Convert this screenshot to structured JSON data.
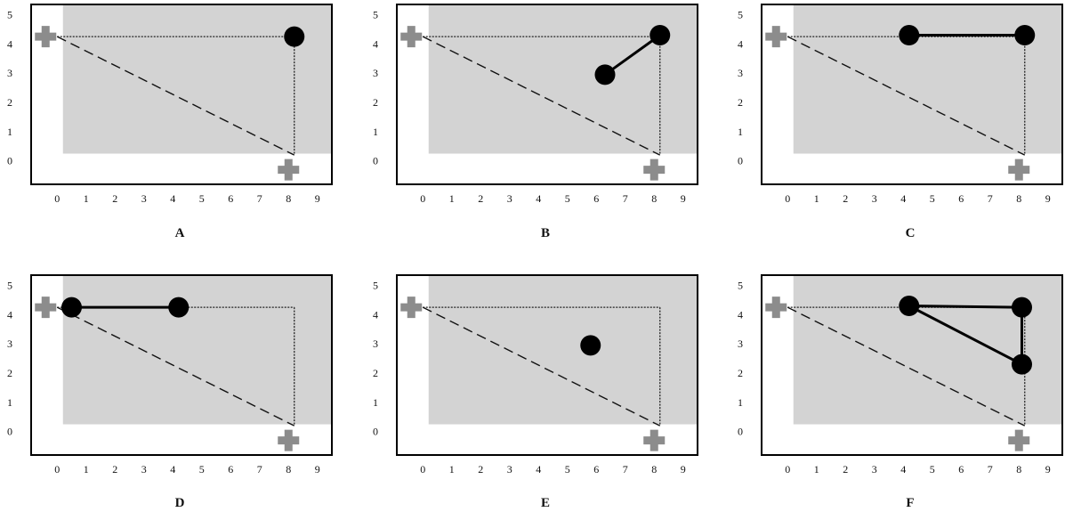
{
  "x_ticks": [
    "0",
    "1",
    "2",
    "3",
    "4",
    "5",
    "6",
    "7",
    "8",
    "9"
  ],
  "y_ticks": [
    "0",
    "1",
    "2",
    "3",
    "4",
    "5"
  ],
  "colors": {
    "region": "#d3d3d3",
    "frame": "#000000",
    "plus": "#8c8c8c",
    "path": "#000000"
  },
  "panels": [
    {
      "label": "A",
      "circles": [
        [
          8.2,
          4.25
        ]
      ],
      "links": []
    },
    {
      "label": "B",
      "circles": [
        [
          6.3,
          2.95
        ],
        [
          8.2,
          4.3
        ]
      ],
      "links": [
        [
          0,
          1
        ]
      ]
    },
    {
      "label": "C",
      "circles": [
        [
          4.2,
          4.3
        ],
        [
          8.2,
          4.3
        ]
      ],
      "links": [
        [
          0,
          1
        ]
      ]
    },
    {
      "label": "D",
      "circles": [
        [
          0.5,
          4.25
        ],
        [
          4.2,
          4.25
        ]
      ],
      "links": [
        [
          0,
          1
        ]
      ]
    },
    {
      "label": "E",
      "circles": [
        [
          5.8,
          2.95
        ]
      ],
      "links": []
    },
    {
      "label": "F",
      "circles": [
        [
          4.2,
          4.3
        ],
        [
          8.1,
          4.25
        ],
        [
          8.1,
          2.3
        ]
      ],
      "links": [
        [
          0,
          1
        ],
        [
          1,
          2
        ],
        [
          0,
          2
        ]
      ]
    }
  ],
  "shared": {
    "plus_markers": [
      [
        -0.4,
        4.25
      ],
      [
        8.0,
        -0.3
      ]
    ],
    "dotted_lines": [
      [
        [
          0,
          4.25
        ],
        [
          8.2,
          4.25
        ]
      ],
      [
        [
          8.2,
          4.25
        ],
        [
          8.2,
          0.2
        ]
      ]
    ],
    "dashed_lines": [
      [
        [
          0,
          4.25
        ],
        [
          8.2,
          0.2
        ]
      ]
    ],
    "region": {
      "x": [
        0.2,
        9.5
      ],
      "y": [
        0.25,
        5.35
      ]
    },
    "xlim": [
      -0.9,
      9.5
    ],
    "ylim": [
      -0.8,
      5.35
    ]
  }
}
